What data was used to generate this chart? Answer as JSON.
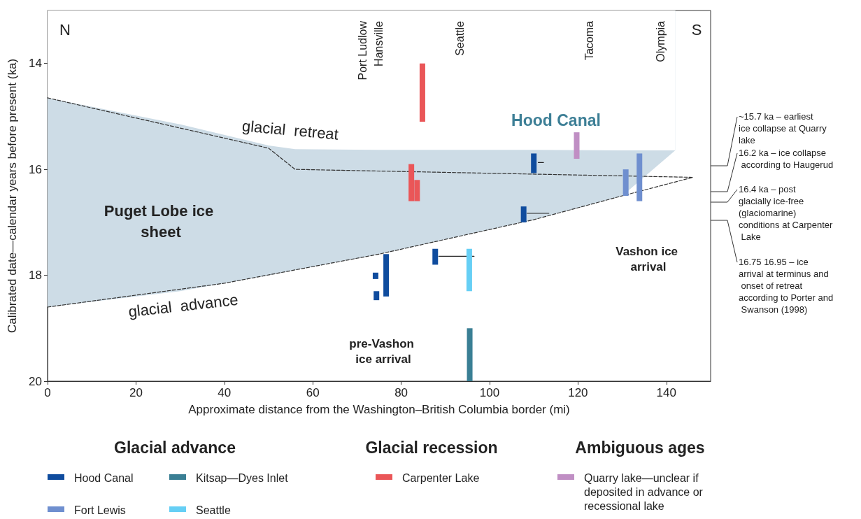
{
  "chart_data": {
    "type": "bar",
    "xlabel": "Approximate distance from the Washington–British Columbia border (mi)",
    "ylabel": "Calibrated date—calendar years before present (ka)",
    "xlim": [
      0,
      150
    ],
    "xticks": [
      0,
      20,
      40,
      60,
      80,
      100,
      120,
      140
    ],
    "ylim": [
      20,
      13
    ],
    "yticks": [
      14,
      16,
      18,
      20
    ],
    "legend": "bottom",
    "series": [
      {
        "type": "area",
        "color": "#cddce6",
        "x": [
          0,
          30,
          50,
          56,
          75,
          110,
          130,
          142
        ],
        "values": [
          18.6,
          18.3,
          18.0,
          17.9,
          17.6,
          16.95,
          16.5,
          15.64
        ]
      },
      {
        "type": "area",
        "color": "#ffffff",
        "x": [
          0,
          30,
          50,
          56,
          75,
          110,
          130,
          142
        ],
        "values": [
          14.65,
          15.15,
          15.55,
          15.62,
          15.63,
          15.63,
          15.64,
          15.64
        ]
      },
      {
        "type": "line",
        "color": "#333333",
        "line_style": "dashed",
        "marker": "none",
        "x": [
          0,
          50,
          56,
          146
        ],
        "values": [
          14.65,
          15.6,
          16.0,
          16.15
        ]
      },
      {
        "type": "line",
        "color": "#333333",
        "line_style": "dashed",
        "marker": "none",
        "x": [
          0,
          40,
          75,
          110,
          130,
          146
        ],
        "values": [
          18.6,
          18.15,
          17.6,
          16.95,
          16.5,
          16.15
        ]
      },
      {
        "type": "line",
        "color": "#222222",
        "line_style": "solid",
        "marker": "none",
        "x": [
          88.5,
          96.5
        ],
        "values": [
          17.64,
          17.64
        ]
      },
      {
        "type": "line",
        "color": "#222222",
        "line_style": "solid",
        "marker": "none",
        "x": [
          111,
          112.2
        ],
        "values": [
          15.87,
          15.87
        ]
      },
      {
        "type": "line",
        "color": "#222222",
        "line_style": "solid",
        "marker": "none",
        "x": [
          108.5,
          113.4
        ],
        "values": [
          16.83,
          16.83
        ]
      },
      {
        "name": "Hood Canal",
        "color": "#0f4c9e",
        "x": [
          74.2,
          74.4,
          76.6,
          87.7,
          107.7,
          110
        ],
        "base": [
          17.95,
          18.3,
          17.6,
          17.5,
          16.7,
          15.7
        ],
        "values": [
          0.12,
          0.17,
          0.8,
          0.3,
          0.3,
          0.37
        ]
      },
      {
        "name": "Kitsap—Dyes Inlet",
        "color": "#3a7f94",
        "x": [
          95.5
        ],
        "base": [
          19.0
        ],
        "values": [
          1.0
        ]
      },
      {
        "name": "Fort Lewis",
        "color": "#6f8fcf",
        "x": [
          130.8,
          133.9
        ],
        "base": [
          16.0,
          15.7
        ],
        "values": [
          0.5,
          0.9
        ]
      },
      {
        "name": "Seattle",
        "color": "#66cff5",
        "x": [
          95.4
        ],
        "base": [
          17.5
        ],
        "values": [
          0.8
        ]
      },
      {
        "name": "Carpenter Lake",
        "color": "#ea5658",
        "x": [
          82.3,
          83.6,
          84.8
        ],
        "base": [
          15.9,
          16.2,
          14.0
        ],
        "values": [
          0.7,
          0.4,
          1.1
        ]
      },
      {
        "name": "Quarry lake—unclear if deposited in advance or recessional lake",
        "color": "#c08fc4",
        "x": [
          119.7
        ],
        "base": [
          15.3
        ],
        "values": [
          0.5
        ]
      }
    ],
    "annotations": [
      "N",
      "S",
      "glacial  retreat",
      "glacial  advance",
      "Hood Canal",
      "Puget Lobe ice sheet",
      "Vashon ice arrival",
      "pre-Vashon ice arrival",
      "~15.7 ka – earliest ice collapse at Quarry lake",
      "16.2 ka – ice collapse according to Haugerud",
      "16.4 ka – post glacially ice-free (glaciomarine) conditions at Carpenter Lake",
      "16.75 16.95 – ice arrival at terminus and onset of retreat according to Porter and Swanson (1998)",
      "Port Ludlow",
      "Hansville",
      "Seattle",
      "Tacoma",
      "Olympia",
      "Glacial advance",
      "Glacial recession",
      "Ambiguous ages"
    ]
  }
}
